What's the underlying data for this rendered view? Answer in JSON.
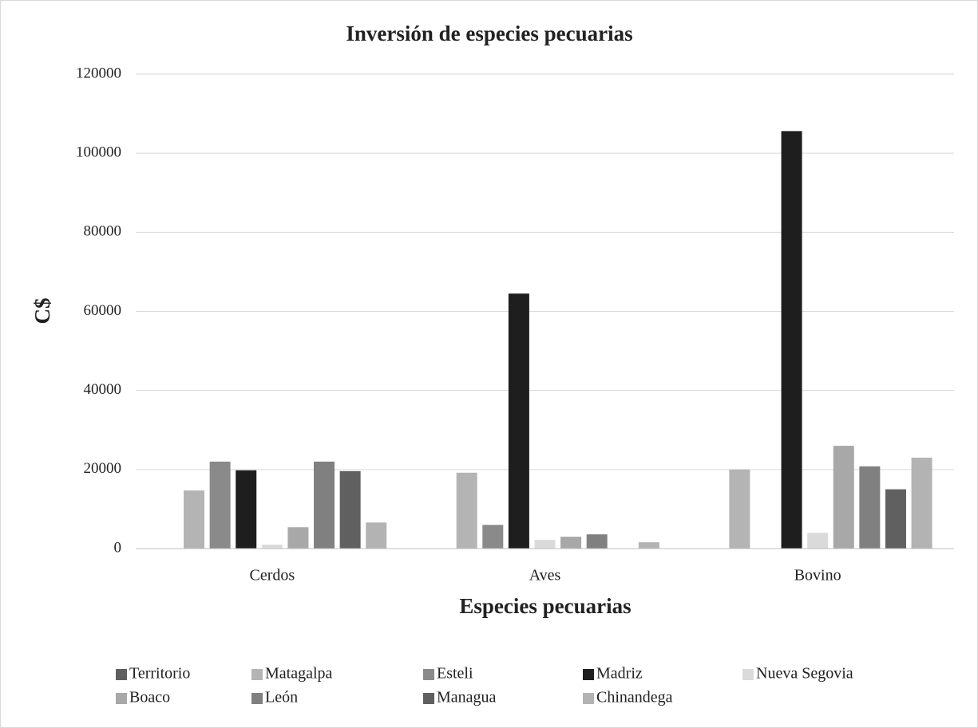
{
  "chart_data": {
    "type": "bar",
    "title": "Inversión de especies pecuarias",
    "y_label": "C$",
    "x_label": "Especies pecuarias",
    "categories": [
      "Cerdos",
      "Aves",
      "Bovino"
    ],
    "series": [
      {
        "name": "Territorio",
        "color": "#5f5f5f",
        "values": [
          0,
          0,
          0
        ]
      },
      {
        "name": "Matagalpa",
        "color": "#b4b4b4",
        "values": [
          14700,
          19200,
          20000
        ]
      },
      {
        "name": "Esteli",
        "color": "#8a8a8a",
        "values": [
          22000,
          6000,
          0
        ]
      },
      {
        "name": "Madriz",
        "color": "#1e1e1e",
        "values": [
          19800,
          64500,
          105600
        ]
      },
      {
        "name": "Nueva Segovia",
        "color": "#dadada",
        "values": [
          1000,
          2200,
          4000
        ]
      },
      {
        "name": "Boaco",
        "color": "#a8a8a8",
        "values": [
          5400,
          3000,
          26000
        ]
      },
      {
        "name": "León",
        "color": "#808080",
        "values": [
          22000,
          3600,
          20800
        ]
      },
      {
        "name": "Managua",
        "color": "#606060",
        "values": [
          19600,
          0,
          15000
        ]
      },
      {
        "name": "Chinandega",
        "color": "#b3b3b3",
        "values": [
          6600,
          1600,
          23000
        ]
      }
    ],
    "ylim": [
      0,
      120000
    ],
    "yticks": [
      0,
      20000,
      40000,
      60000,
      80000,
      100000,
      120000
    ],
    "grid": true,
    "legend": "bottom"
  }
}
